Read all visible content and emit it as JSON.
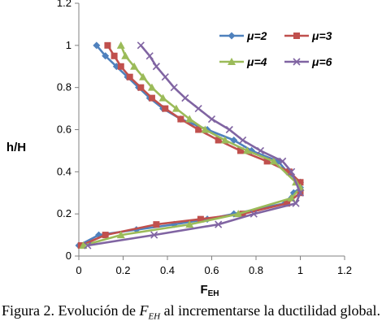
{
  "chart_data": {
    "type": "line",
    "xlabel": "F",
    "xlabel_sub": "EH",
    "ylabel": "h/H",
    "xlim": [
      0,
      1.2
    ],
    "ylim": [
      0,
      1.2
    ],
    "x_ticks": [
      0,
      0.2,
      0.4,
      0.6,
      0.8,
      1,
      1.2
    ],
    "y_ticks": [
      0,
      0.2,
      0.4,
      0.6,
      0.8,
      1,
      1.2
    ],
    "x_tick_labels": [
      "0",
      "0.2",
      "0.4",
      "0.6",
      "0.8",
      "1",
      "1.2"
    ],
    "y_tick_labels": [
      "0",
      "0.2",
      "0.4",
      "0.6",
      "0.8",
      "1",
      "1.2"
    ],
    "grid": false,
    "legend_position": "top-right",
    "series": [
      {
        "name": "μ=2",
        "marker": "diamond",
        "color": "#4f81bd",
        "points": [
          [
            0,
            0.05
          ],
          [
            0.09,
            0.1
          ],
          [
            0.26,
            0.125
          ],
          [
            0.43,
            0.15
          ],
          [
            0.58,
            0.175
          ],
          [
            0.7,
            0.2
          ],
          [
            0.93,
            0.25
          ],
          [
            0.97,
            0.3
          ],
          [
            1.0,
            0.325
          ],
          [
            1.0,
            0.35
          ],
          [
            0.94,
            0.4
          ],
          [
            0.9,
            0.45
          ],
          [
            0.78,
            0.5
          ],
          [
            0.7,
            0.55
          ],
          [
            0.58,
            0.6
          ],
          [
            0.46,
            0.65
          ],
          [
            0.38,
            0.7
          ],
          [
            0.32,
            0.75
          ],
          [
            0.27,
            0.8
          ],
          [
            0.22,
            0.85
          ],
          [
            0.17,
            0.9
          ],
          [
            0.12,
            0.95
          ],
          [
            0.08,
            1.0
          ]
        ]
      },
      {
        "name": "μ=3",
        "marker": "square",
        "color": "#c0504d",
        "points": [
          [
            0.01,
            0.05
          ],
          [
            0.12,
            0.1
          ],
          [
            0.35,
            0.15
          ],
          [
            0.55,
            0.175
          ],
          [
            0.74,
            0.2
          ],
          [
            0.94,
            0.25
          ],
          [
            1.0,
            0.3
          ],
          [
            1.0,
            0.35
          ],
          [
            0.95,
            0.4
          ],
          [
            0.85,
            0.45
          ],
          [
            0.73,
            0.5
          ],
          [
            0.63,
            0.55
          ],
          [
            0.54,
            0.6
          ],
          [
            0.46,
            0.65
          ],
          [
            0.39,
            0.7
          ],
          [
            0.33,
            0.75
          ],
          [
            0.28,
            0.8
          ],
          [
            0.23,
            0.85
          ],
          [
            0.19,
            0.9
          ],
          [
            0.16,
            0.95
          ],
          [
            0.13,
            1.0
          ]
        ]
      },
      {
        "name": "μ=4",
        "marker": "triangle",
        "color": "#9bbb59",
        "points": [
          [
            0.02,
            0.05
          ],
          [
            0.19,
            0.1
          ],
          [
            0.5,
            0.15
          ],
          [
            0.72,
            0.2
          ],
          [
            0.96,
            0.275
          ],
          [
            1.0,
            0.325
          ],
          [
            0.98,
            0.35
          ],
          [
            0.88,
            0.45
          ],
          [
            0.76,
            0.5
          ],
          [
            0.66,
            0.55
          ],
          [
            0.57,
            0.6
          ],
          [
            0.5,
            0.65
          ],
          [
            0.44,
            0.7
          ],
          [
            0.38,
            0.75
          ],
          [
            0.33,
            0.8
          ],
          [
            0.29,
            0.85
          ],
          [
            0.25,
            0.9
          ],
          [
            0.21,
            0.95
          ],
          [
            0.19,
            1.0
          ]
        ]
      },
      {
        "name": "μ=6",
        "marker": "x",
        "color": "#8064a2",
        "points": [
          [
            0.04,
            0.05
          ],
          [
            0.34,
            0.1
          ],
          [
            0.63,
            0.15
          ],
          [
            0.79,
            0.2
          ],
          [
            0.98,
            0.25
          ],
          [
            1.0,
            0.3
          ],
          [
            0.96,
            0.4
          ],
          [
            0.92,
            0.45
          ],
          [
            0.82,
            0.5
          ],
          [
            0.74,
            0.55
          ],
          [
            0.68,
            0.6
          ],
          [
            0.6,
            0.65
          ],
          [
            0.54,
            0.7
          ],
          [
            0.48,
            0.75
          ],
          [
            0.43,
            0.8
          ],
          [
            0.39,
            0.85
          ],
          [
            0.35,
            0.9
          ],
          [
            0.32,
            0.95
          ],
          [
            0.28,
            1.0
          ]
        ]
      }
    ]
  },
  "caption": {
    "prefix": "Figura 2. Evolución de",
    "symbol": "F",
    "symbol_sub": "EH",
    "suffix": "al incrementarse la ductilidad global."
  }
}
